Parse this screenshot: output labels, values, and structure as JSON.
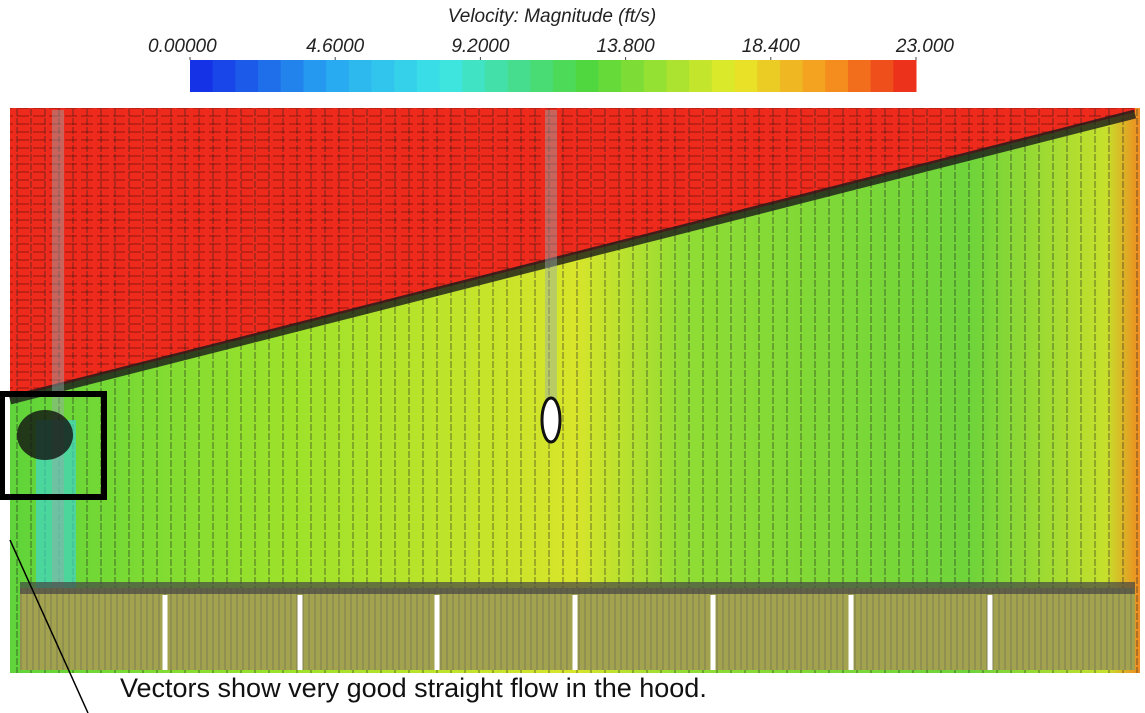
{
  "colorbar": {
    "title": "Velocity: Magnitude (ft/s)",
    "lim": [
      0,
      23
    ],
    "ticks": [
      {
        "value": 0,
        "label": "0.00000"
      },
      {
        "value": 4.6,
        "label": "4.6000"
      },
      {
        "value": 9.2,
        "label": "9.2000"
      },
      {
        "value": 13.8,
        "label": "13.800"
      },
      {
        "value": 18.4,
        "label": "18.400"
      },
      {
        "value": 23,
        "label": "23.000"
      }
    ]
  },
  "caption": "Vectors show very good straight flow in the hood."
}
